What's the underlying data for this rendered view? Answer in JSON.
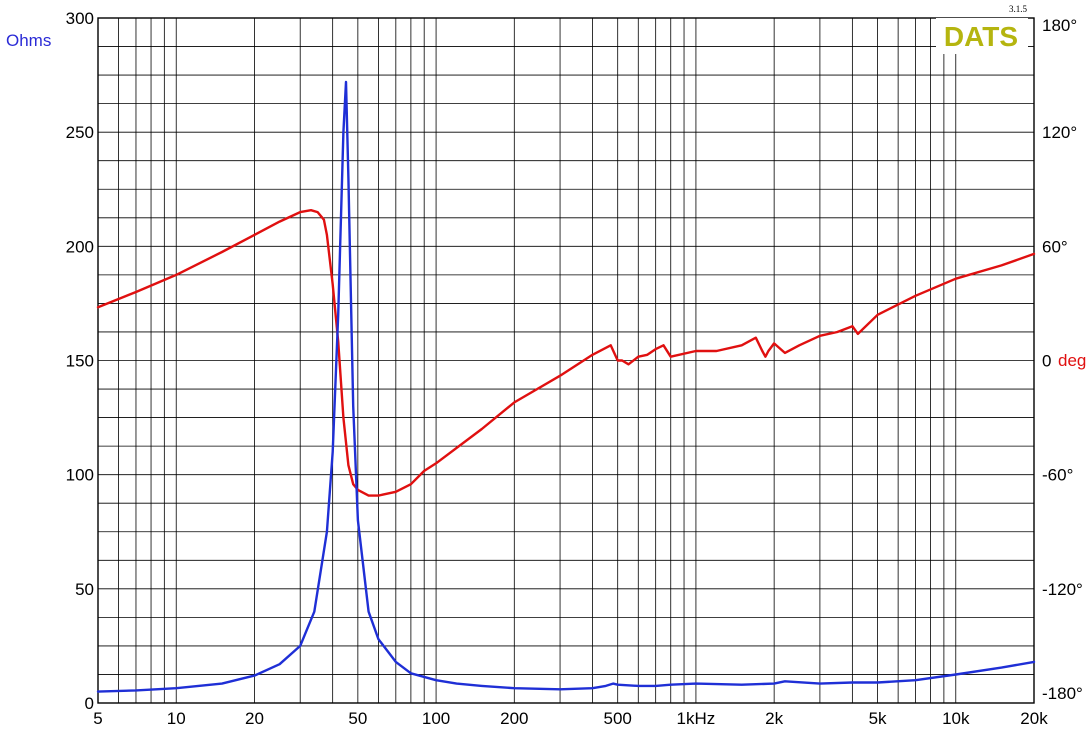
{
  "chart_data": {
    "type": "line",
    "title": "",
    "brand": "DATS",
    "version": "3.1.5",
    "x_axis": {
      "scale": "log",
      "range": [
        5,
        20000
      ],
      "tick_values": [
        5,
        10,
        20,
        50,
        100,
        200,
        500,
        1000,
        2000,
        5000,
        10000,
        20000
      ],
      "tick_labels": [
        "5",
        "10",
        "20",
        "50",
        "100",
        "200",
        "500",
        "1kHz",
        "2k",
        "5k",
        "10k",
        "20k"
      ]
    },
    "y_left": {
      "unit_label": "Ohms",
      "range": [
        0,
        300
      ],
      "tick_values": [
        0,
        50,
        100,
        150,
        200,
        250,
        300
      ],
      "tick_labels": [
        "0",
        "50",
        "100",
        "150",
        "200",
        "250",
        "300"
      ]
    },
    "y_right": {
      "unit_label": "deg",
      "range": [
        -180,
        180
      ],
      "tick_values": [
        -180,
        -120,
        -60,
        0,
        60,
        120,
        180
      ],
      "tick_labels": [
        "-180°",
        "-120°",
        "-60°",
        "0",
        "60°",
        "120°",
        "180°"
      ]
    },
    "grid": true,
    "colors": {
      "impedance": "#1f2fd6",
      "phase": "#e01010",
      "brand": "#b5b50f",
      "ohms_label": "#2b2bd6",
      "deg_label": "#e01010",
      "grid": "#000000"
    },
    "series": [
      {
        "axis": "left",
        "x": [
          5,
          7,
          10,
          15,
          20,
          25,
          30,
          34,
          38,
          40,
          42,
          44,
          45,
          46,
          48,
          50,
          55,
          60,
          70,
          80,
          100,
          120,
          150,
          200,
          300,
          400,
          450,
          480,
          500,
          600,
          700,
          800,
          1000,
          1500,
          2000,
          2200,
          3000,
          4000,
          5000,
          7000,
          10000,
          15000,
          20000
        ],
        "y": [
          5,
          5.5,
          6.5,
          8.5,
          12,
          17,
          25,
          40,
          75,
          110,
          170,
          250,
          272,
          230,
          130,
          80,
          40,
          28,
          18,
          13,
          10,
          8.5,
          7.5,
          6.5,
          6,
          6.5,
          7.5,
          8.5,
          8,
          7.5,
          7.5,
          8,
          8.5,
          8,
          8.5,
          9.5,
          8.5,
          9,
          9,
          10,
          12.5,
          15.5,
          18
        ]
      },
      {
        "axis": "right",
        "x": [
          5,
          7,
          10,
          15,
          20,
          25,
          30,
          33,
          35,
          37,
          38,
          40,
          42,
          44,
          46,
          48,
          50,
          55,
          60,
          70,
          80,
          90,
          100,
          150,
          200,
          300,
          400,
          470,
          500,
          520,
          550,
          600,
          650,
          700,
          750,
          800,
          1000,
          1200,
          1500,
          1700,
          1800,
          1850,
          1900,
          2000,
          2200,
          2500,
          3000,
          3500,
          4000,
          4200,
          5000,
          7000,
          10000,
          15000,
          20000
        ],
        "y": [
          28,
          36,
          45,
          57,
          66,
          73,
          78,
          79,
          78,
          74,
          66,
          40,
          10,
          -30,
          -55,
          -65,
          -68,
          -71,
          -71,
          -69,
          -65,
          -58,
          -54,
          -36,
          -22,
          -8,
          3,
          8,
          0,
          0,
          -2,
          2,
          3,
          6,
          8,
          2,
          5,
          5,
          8,
          12,
          5,
          2,
          5,
          9,
          4,
          8,
          13,
          15,
          18,
          14,
          24,
          34,
          43,
          50,
          56
        ]
      }
    ]
  }
}
